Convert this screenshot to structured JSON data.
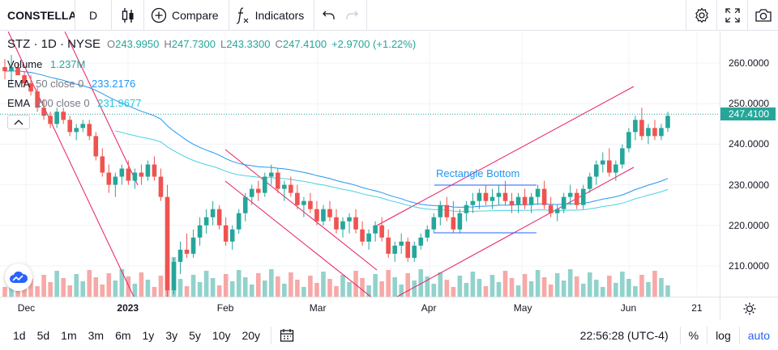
{
  "toolbar": {
    "symbol": "CONSTELLA",
    "interval": "D",
    "compare_label": "Compare",
    "indicators_label": "Indicators",
    "icons": [
      "candles-icon",
      "compare-plus-icon",
      "indicators-fx-icon",
      "undo-icon",
      "redo-icon",
      "settings-gear-icon",
      "fullscreen-icon",
      "camera-icon"
    ]
  },
  "legend": {
    "title": "STZ · 1D · NYSE",
    "open_label": "O",
    "open": "243.9950",
    "high_label": "H",
    "high": "247.7300",
    "low_label": "L",
    "low": "243.3300",
    "close_label": "C",
    "close": "247.4100",
    "change": "+2.9700 (+1.22%)",
    "volume_name": "Volume",
    "volume_value": "1.237M",
    "ema50_name": "EMA",
    "ema50_params": "50 close 0",
    "ema50_value": "233.2176",
    "ema200_name": "EMA",
    "ema200_params": "200 close 0",
    "ema200_value": "231.9677"
  },
  "annotation": {
    "rectangle_label": "Rectangle Bottom"
  },
  "price_scale": {
    "ticks": [
      "260.0000",
      "250.0000",
      "240.0000",
      "230.0000",
      "220.0000",
      "210.0000"
    ],
    "last_price": "247.4100"
  },
  "time_scale": {
    "ticks": [
      {
        "label": "Dec",
        "bold": false
      },
      {
        "label": "2023",
        "bold": true
      },
      {
        "label": "Feb",
        "bold": false
      },
      {
        "label": "Mar",
        "bold": false
      },
      {
        "label": "Apr",
        "bold": false
      },
      {
        "label": "May",
        "bold": false
      },
      {
        "label": "Jun",
        "bold": false
      },
      {
        "label": "21",
        "bold": false
      }
    ]
  },
  "bottom_bar": {
    "ranges": [
      "1d",
      "5d",
      "1m",
      "3m",
      "6m",
      "1y",
      "3y",
      "5y",
      "10y",
      "20y"
    ],
    "clock": "22:56:28 (UTC-4)",
    "percent_label": "%",
    "log_label": "log",
    "auto_label": "auto"
  },
  "colors": {
    "up": "#26a69a",
    "down": "#ef5350",
    "ema50": "#2196f3",
    "ema200": "#4dd0e1",
    "trend": "#e91e63",
    "rect": "#2962ff"
  },
  "chart_data": {
    "type": "candlestick",
    "ylim": [
      202,
      265
    ],
    "start": "2022-11-21",
    "candles": [
      [
        259,
        261,
        256,
        258
      ],
      [
        258,
        262,
        255,
        259
      ],
      [
        259,
        260,
        257,
        257
      ],
      [
        257,
        258,
        254,
        255
      ],
      [
        255,
        257,
        252,
        253
      ],
      [
        253,
        254,
        248,
        249
      ],
      [
        249,
        251,
        246,
        247
      ],
      [
        247,
        248,
        244,
        245
      ],
      [
        245,
        249,
        244,
        248
      ],
      [
        248,
        249,
        245,
        246
      ],
      [
        246,
        247,
        242,
        243
      ],
      [
        243,
        245,
        241,
        244
      ],
      [
        244,
        246,
        243,
        245
      ],
      [
        245,
        246,
        241,
        242
      ],
      [
        242,
        243,
        236,
        237
      ],
      [
        237,
        239,
        232,
        233
      ],
      [
        233,
        235,
        228,
        230
      ],
      [
        230,
        233,
        227,
        232
      ],
      [
        232,
        235,
        230,
        234
      ],
      [
        234,
        236,
        230,
        231
      ],
      [
        231,
        234,
        229,
        233
      ],
      [
        233,
        235,
        230,
        232
      ],
      [
        232,
        236,
        231,
        235
      ],
      [
        235,
        237,
        231,
        232
      ],
      [
        232,
        234,
        226,
        227
      ],
      [
        227,
        230,
        202,
        204
      ],
      [
        204,
        212,
        203,
        211
      ],
      [
        211,
        216,
        208,
        214
      ],
      [
        214,
        218,
        212,
        213
      ],
      [
        213,
        219,
        212,
        217
      ],
      [
        217,
        222,
        215,
        220
      ],
      [
        220,
        224,
        218,
        222
      ],
      [
        222,
        226,
        220,
        224
      ],
      [
        224,
        225,
        219,
        220
      ],
      [
        220,
        222,
        215,
        216
      ],
      [
        216,
        220,
        214,
        219
      ],
      [
        219,
        224,
        218,
        223
      ],
      [
        223,
        228,
        221,
        227
      ],
      [
        227,
        230,
        225,
        229
      ],
      [
        229,
        231,
        226,
        228
      ],
      [
        228,
        233,
        227,
        232
      ],
      [
        232,
        235,
        230,
        233
      ],
      [
        233,
        234,
        228,
        229
      ],
      [
        229,
        231,
        226,
        230
      ],
      [
        230,
        232,
        227,
        228
      ],
      [
        228,
        230,
        224,
        225
      ],
      [
        225,
        227,
        222,
        226
      ],
      [
        226,
        228,
        223,
        224
      ],
      [
        224,
        226,
        220,
        221
      ],
      [
        221,
        225,
        220,
        224
      ],
      [
        224,
        226,
        221,
        222
      ],
      [
        222,
        224,
        218,
        219
      ],
      [
        219,
        222,
        217,
        221
      ],
      [
        221,
        223,
        218,
        222
      ],
      [
        222,
        224,
        218,
        219
      ],
      [
        219,
        221,
        215,
        216
      ],
      [
        216,
        219,
        214,
        218
      ],
      [
        218,
        221,
        216,
        220
      ],
      [
        220,
        222,
        216,
        217
      ],
      [
        217,
        219,
        212,
        213
      ],
      [
        213,
        216,
        211,
        215
      ],
      [
        215,
        218,
        213,
        216
      ],
      [
        216,
        217,
        211,
        212
      ],
      [
        212,
        216,
        211,
        215
      ],
      [
        215,
        218,
        214,
        217
      ],
      [
        217,
        220,
        216,
        219
      ],
      [
        219,
        223,
        218,
        222
      ],
      [
        222,
        226,
        220,
        225
      ],
      [
        225,
        227,
        221,
        222
      ],
      [
        222,
        226,
        218,
        219
      ],
      [
        219,
        224,
        218,
        223
      ],
      [
        223,
        226,
        221,
        225
      ],
      [
        225,
        228,
        223,
        226
      ],
      [
        226,
        229,
        224,
        228
      ],
      [
        228,
        230,
        225,
        226
      ],
      [
        226,
        229,
        224,
        227
      ],
      [
        227,
        230,
        225,
        228
      ],
      [
        228,
        231,
        225,
        226
      ],
      [
        226,
        228,
        223,
        225
      ],
      [
        225,
        228,
        223,
        227
      ],
      [
        227,
        229,
        224,
        225
      ],
      [
        225,
        228,
        223,
        227
      ],
      [
        227,
        230,
        225,
        229
      ],
      [
        229,
        231,
        224,
        225
      ],
      [
        225,
        227,
        222,
        223
      ],
      [
        223,
        225,
        221,
        224
      ],
      [
        224,
        228,
        223,
        227
      ],
      [
        227,
        230,
        225,
        228
      ],
      [
        228,
        229,
        224,
        225
      ],
      [
        225,
        230,
        224,
        229
      ],
      [
        229,
        233,
        228,
        232
      ],
      [
        232,
        236,
        230,
        235
      ],
      [
        235,
        238,
        233,
        236
      ],
      [
        236,
        239,
        232,
        233
      ],
      [
        233,
        236,
        231,
        235
      ],
      [
        235,
        240,
        234,
        239
      ],
      [
        239,
        244,
        238,
        243
      ],
      [
        243,
        247,
        241,
        246
      ],
      [
        246,
        249,
        241,
        242
      ],
      [
        242,
        245,
        240,
        244
      ],
      [
        244,
        246,
        241,
        242
      ],
      [
        242,
        245,
        241,
        244
      ],
      [
        244,
        248,
        243,
        247
      ]
    ]
  }
}
